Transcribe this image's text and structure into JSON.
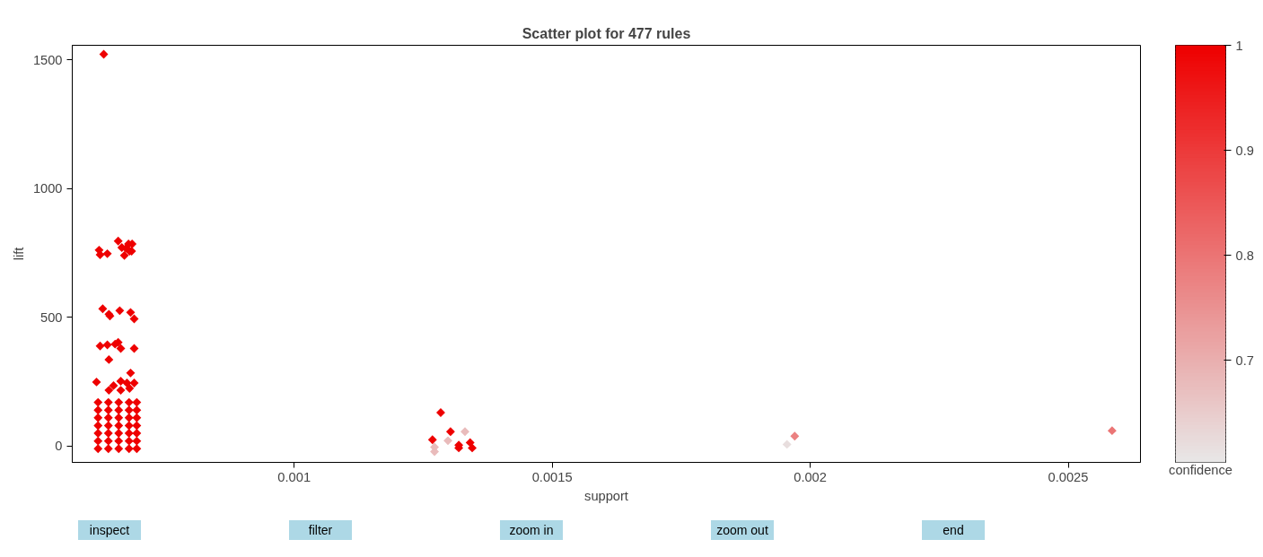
{
  "chart_data": {
    "type": "scatter",
    "title": "Scatter plot for 477 rules",
    "xlabel": "support",
    "ylabel": "lift",
    "clabel": "confidence",
    "xlim": [
      0.00057,
      0.00264
    ],
    "xticks": [
      0.001,
      0.0015,
      0.002,
      0.0025
    ],
    "ylim": [
      -63,
      1556
    ],
    "yticks": [
      0,
      500,
      1000,
      1500
    ],
    "clim": [
      0.603,
      1
    ],
    "cticks": [
      0.7,
      0.8,
      0.9,
      1
    ],
    "marker": "diamond",
    "annotations": [
      "inspect",
      "filter",
      "zoom in",
      "zoom out",
      "end"
    ],
    "series": [
      {
        "x": [
          0.000631,
          0.000622,
          0.000624,
          0.000638,
          0.000659,
          0.000666,
          0.000674,
          0.000679,
          0.000686,
          0.000685,
          0.000671,
          0.000681,
          0.000629,
          0.000641,
          0.000643,
          0.000662,
          0.000683,
          0.00069,
          0.000624,
          0.000638,
          0.000653,
          0.000659,
          0.000664,
          0.00069,
          0.000641,
          0.000617,
          0.000683,
          0.00069,
          0.000664,
          0.00065,
          0.000641,
          0.000664,
          0.000676,
          0.000681,
          0.00062,
          0.00062,
          0.00062,
          0.00062,
          0.00062,
          0.00062,
          0.00062,
          0.00064,
          0.00064,
          0.00064,
          0.00064,
          0.00064,
          0.00064,
          0.00064,
          0.00066,
          0.00066,
          0.00066,
          0.00066,
          0.00066,
          0.00066,
          0.00066,
          0.00068,
          0.00068,
          0.00068,
          0.00068,
          0.00068,
          0.00068,
          0.00068,
          0.000695,
          0.000695,
          0.000695,
          0.000695,
          0.000695,
          0.000695,
          0.000695,
          0.001284,
          0.001303,
          0.001268,
          0.001331,
          0.001298,
          0.001272,
          0.001272,
          0.001319,
          0.001319,
          0.001341,
          0.001345,
          0.00197,
          0.001955,
          0.002585
        ],
        "values": [
          1521,
          761,
          743,
          747,
          796,
          771,
          768,
          785,
          785,
          757,
          740,
          757,
          533,
          512,
          505,
          526,
          519,
          494,
          389,
          393,
          396,
          403,
          379,
          379,
          336,
          249,
          284,
          245,
          252,
          235,
          217,
          217,
          245,
          224,
          -10,
          20,
          50,
          80,
          110,
          140,
          170,
          -10,
          20,
          50,
          80,
          110,
          140,
          170,
          -10,
          20,
          50,
          80,
          110,
          140,
          170,
          -10,
          20,
          50,
          80,
          110,
          140,
          170,
          -10,
          20,
          50,
          80,
          110,
          140,
          170,
          130,
          56,
          25,
          56,
          21,
          -4,
          -21,
          4,
          -7,
          14,
          -7,
          39,
          7,
          60
        ],
        "cvalues": [
          1,
          1,
          1,
          1,
          1,
          1,
          1,
          1,
          1,
          1,
          1,
          1,
          1,
          1,
          1,
          1,
          1,
          1,
          1,
          1,
          1,
          1,
          1,
          1,
          1,
          1,
          1,
          1,
          1,
          1,
          1,
          1,
          1,
          1,
          1,
          1,
          1,
          1,
          1,
          1,
          1,
          1,
          1,
          1,
          1,
          1,
          1,
          1,
          1,
          1,
          1,
          1,
          1,
          1,
          1,
          1,
          1,
          1,
          1,
          1,
          1,
          1,
          1,
          1,
          1,
          1,
          1,
          1,
          1,
          1,
          1,
          1,
          0.68,
          0.68,
          0.68,
          0.68,
          1,
          1,
          1,
          1,
          0.78,
          0.62,
          0.8
        ]
      }
    ]
  }
}
